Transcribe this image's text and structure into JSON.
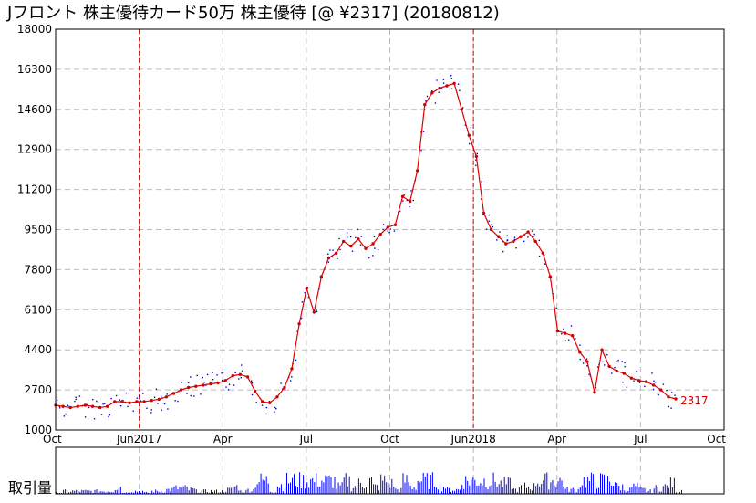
{
  "chart_data": {
    "type": "line",
    "title": "Jフロント 株主優待カード50万 株主優待  [@ ¥2317] (20180812)",
    "ylim": [
      1000,
      18000
    ],
    "y_ticks": [
      "18000",
      "16300",
      "14600",
      "12900",
      "11200",
      "9500",
      "7800",
      "6100",
      "4400",
      "2700",
      "1000"
    ],
    "x_ticks": [
      "Oct",
      "Jun2017",
      "Apr",
      "Jul",
      "Oct",
      "Jun2018",
      "Apr",
      "Jul",
      "Oct"
    ],
    "volume_label": "取引量",
    "last_value_label": "2317",
    "grid": true,
    "colors": {
      "line": "#e00000",
      "bid": "#0000cc",
      "volume": "#0000ff",
      "grid": "#bbbbbb",
      "marker": "#d00000"
    },
    "series": [
      {
        "values": [
          2050,
          2000,
          1950,
          2000,
          2050,
          2000,
          1950,
          2000,
          2200,
          2200,
          2150,
          2200,
          2200,
          2250,
          2300,
          2400,
          2550,
          2700,
          2800,
          2850,
          2900,
          2950,
          3000,
          3100,
          3300,
          3350,
          3250,
          2650,
          2200,
          2150,
          2400,
          2800,
          3600,
          5500,
          7000,
          6000,
          7500,
          8300,
          8500,
          9000,
          8800,
          9100,
          8700,
          8900,
          9300,
          9600,
          9700,
          10900,
          10700,
          12000,
          14800,
          15300,
          15500,
          15600,
          15700,
          14600,
          13500,
          12600,
          10200,
          9500,
          9200,
          8900,
          9000,
          9200,
          9400,
          9000,
          8500,
          7500,
          5200,
          5100,
          5000,
          4300,
          3900,
          2600,
          4400,
          3700,
          3500,
          3400,
          3200,
          3100,
          3050,
          2900,
          2700,
          2400,
          2317
        ]
      }
    ]
  }
}
